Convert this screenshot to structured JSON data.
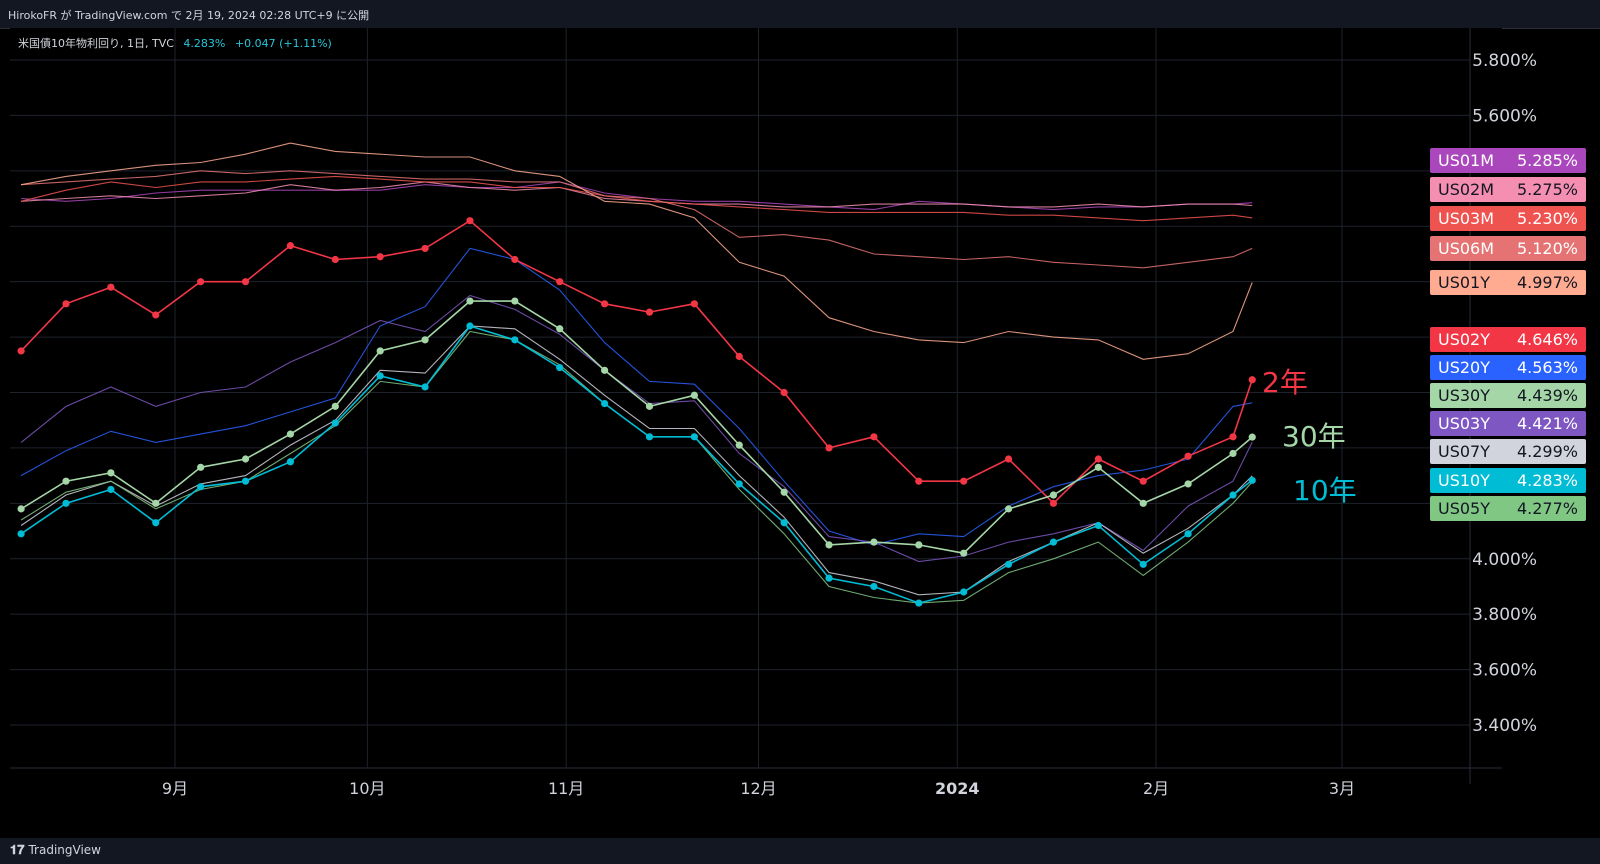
{
  "header": {
    "publish_text": "HirokoFR が TradingView.com で 2月 19, 2024 02:28 UTC+9 に公開"
  },
  "legend": {
    "title": "米国債10年物利回り, 1日, TVC",
    "value": "4.283%",
    "change": "+0.047 (+1.11%)"
  },
  "footer": {
    "brand": "TradingView",
    "logo_icon": "tradingview-logo-icon"
  },
  "colors": {
    "US02Y": "#f23645",
    "US30Y": "#a5d6a7",
    "US10Y": "#00bcd4",
    "US20Y": "#2962ff",
    "US03Y": "#7e57c2",
    "US01M": "#ab47bc",
    "US02M": "#f48fb1",
    "US03M": "#ef5350",
    "US06M": "#e57373",
    "US01Y": "#ffab91",
    "US07Y": "#d1d4dc",
    "US05Y": "#81c784"
  },
  "chart_data": {
    "type": "line",
    "title": "米国債10年物利回り, 1日, TVC",
    "x": [
      "2023-08-08",
      "2023-08-15",
      "2023-08-22",
      "2023-08-29",
      "2023-09-05",
      "2023-09-12",
      "2023-09-19",
      "2023-09-26",
      "2023-10-03",
      "2023-10-10",
      "2023-10-17",
      "2023-10-24",
      "2023-10-31",
      "2023-11-07",
      "2023-11-14",
      "2023-11-21",
      "2023-11-28",
      "2023-12-05",
      "2023-12-12",
      "2023-12-19",
      "2023-12-26",
      "2024-01-02",
      "2024-01-09",
      "2024-01-16",
      "2024-01-23",
      "2024-01-30",
      "2024-02-06",
      "2024-02-13",
      "2024-02-16"
    ],
    "xaxis_ticks": [
      "9月",
      "10月",
      "11月",
      "12月",
      "2024",
      "2月",
      "3月"
    ],
    "yaxis_ticks": [
      "5.800%",
      "5.600%",
      "4.000%",
      "3.800%",
      "3.600%",
      "3.400%"
    ],
    "ylim": [
      3.25,
      5.99
    ],
    "series": [
      {
        "name": "US01M",
        "values": [
          5.3,
          5.29,
          5.3,
          5.32,
          5.33,
          5.33,
          5.33,
          5.33,
          5.33,
          5.35,
          5.34,
          5.34,
          5.36,
          5.32,
          5.3,
          5.29,
          5.29,
          5.28,
          5.27,
          5.26,
          5.29,
          5.28,
          5.27,
          5.26,
          5.27,
          5.27,
          5.28,
          5.28,
          5.285
        ]
      },
      {
        "name": "US02M",
        "values": [
          5.29,
          5.3,
          5.31,
          5.3,
          5.31,
          5.32,
          5.35,
          5.33,
          5.34,
          5.36,
          5.34,
          5.33,
          5.34,
          5.3,
          5.29,
          5.28,
          5.28,
          5.27,
          5.27,
          5.28,
          5.28,
          5.28,
          5.27,
          5.27,
          5.28,
          5.27,
          5.28,
          5.28,
          5.275
        ]
      },
      {
        "name": "US03M",
        "values": [
          5.29,
          5.33,
          5.36,
          5.34,
          5.36,
          5.36,
          5.37,
          5.38,
          5.37,
          5.36,
          5.36,
          5.34,
          5.34,
          5.31,
          5.29,
          5.28,
          5.27,
          5.26,
          5.25,
          5.25,
          5.25,
          5.25,
          5.24,
          5.24,
          5.23,
          5.22,
          5.23,
          5.24,
          5.23
        ]
      },
      {
        "name": "US06M",
        "values": [
          5.35,
          5.36,
          5.37,
          5.38,
          5.4,
          5.39,
          5.4,
          5.39,
          5.38,
          5.37,
          5.37,
          5.36,
          5.36,
          5.31,
          5.3,
          5.26,
          5.16,
          5.17,
          5.15,
          5.1,
          5.09,
          5.08,
          5.09,
          5.07,
          5.06,
          5.05,
          5.07,
          5.09,
          5.12
        ]
      },
      {
        "name": "US01Y",
        "values": [
          5.35,
          5.38,
          5.4,
          5.42,
          5.43,
          5.46,
          5.5,
          5.47,
          5.46,
          5.45,
          5.45,
          5.4,
          5.38,
          5.29,
          5.28,
          5.23,
          5.07,
          5.02,
          4.87,
          4.82,
          4.79,
          4.78,
          4.82,
          4.8,
          4.79,
          4.72,
          4.74,
          4.82,
          4.997
        ]
      },
      {
        "name": "US02Y",
        "values": [
          4.75,
          4.92,
          4.98,
          4.88,
          5.0,
          5.0,
          5.13,
          5.08,
          5.09,
          5.12,
          5.22,
          5.08,
          5.0,
          4.92,
          4.89,
          4.92,
          4.73,
          4.6,
          4.4,
          4.44,
          4.28,
          4.28,
          4.36,
          4.2,
          4.36,
          4.28,
          4.37,
          4.44,
          4.646
        ]
      },
      {
        "name": "US20Y",
        "values": [
          4.3,
          4.39,
          4.46,
          4.42,
          4.45,
          4.48,
          4.53,
          4.58,
          4.84,
          4.91,
          5.12,
          5.08,
          4.97,
          4.78,
          4.64,
          4.63,
          4.47,
          4.28,
          4.1,
          4.05,
          4.09,
          4.08,
          4.19,
          4.26,
          4.3,
          4.32,
          4.36,
          4.55,
          4.563
        ]
      },
      {
        "name": "US30Y",
        "values": [
          4.18,
          4.28,
          4.31,
          4.2,
          4.33,
          4.36,
          4.45,
          4.55,
          4.75,
          4.79,
          4.93,
          4.93,
          4.83,
          4.68,
          4.55,
          4.59,
          4.41,
          4.24,
          4.05,
          4.06,
          4.05,
          4.02,
          4.18,
          4.23,
          4.33,
          4.2,
          4.27,
          4.38,
          4.439
        ]
      },
      {
        "name": "US03Y",
        "values": [
          4.42,
          4.55,
          4.62,
          4.55,
          4.6,
          4.62,
          4.71,
          4.78,
          4.86,
          4.82,
          4.95,
          4.9,
          4.81,
          4.68,
          4.56,
          4.57,
          4.38,
          4.26,
          4.08,
          4.06,
          3.99,
          4.01,
          4.06,
          4.09,
          4.13,
          4.03,
          4.19,
          4.28,
          4.421
        ]
      },
      {
        "name": "US07Y",
        "values": [
          4.12,
          4.23,
          4.28,
          4.19,
          4.27,
          4.3,
          4.41,
          4.5,
          4.68,
          4.67,
          4.84,
          4.83,
          4.72,
          4.59,
          4.47,
          4.47,
          4.3,
          4.15,
          3.95,
          3.92,
          3.87,
          3.88,
          3.99,
          4.06,
          4.13,
          4.02,
          4.11,
          4.23,
          4.299
        ]
      },
      {
        "name": "US10Y",
        "values": [
          4.09,
          4.2,
          4.25,
          4.13,
          4.26,
          4.28,
          4.35,
          4.49,
          4.66,
          4.62,
          4.84,
          4.79,
          4.69,
          4.56,
          4.44,
          4.44,
          4.27,
          4.13,
          3.93,
          3.9,
          3.84,
          3.88,
          3.98,
          4.06,
          4.12,
          3.98,
          4.09,
          4.23,
          4.283
        ]
      },
      {
        "name": "US05Y",
        "values": [
          4.14,
          4.24,
          4.28,
          4.18,
          4.25,
          4.28,
          4.38,
          4.48,
          4.64,
          4.62,
          4.82,
          4.79,
          4.7,
          4.56,
          4.44,
          4.44,
          4.25,
          4.09,
          3.9,
          3.86,
          3.84,
          3.85,
          3.95,
          4.0,
          4.06,
          3.94,
          4.06,
          4.2,
          4.277
        ]
      }
    ],
    "price_tags": [
      {
        "symbol": "US01M",
        "value": "5.285%"
      },
      {
        "symbol": "US02M",
        "value": "5.275%"
      },
      {
        "symbol": "US03M",
        "value": "5.230%"
      },
      {
        "symbol": "US06M",
        "value": "5.120%"
      },
      {
        "symbol": "US01Y",
        "value": "4.997%"
      },
      {
        "symbol": "US02Y",
        "value": "4.646%"
      },
      {
        "symbol": "US20Y",
        "value": "4.563%"
      },
      {
        "symbol": "US30Y",
        "value": "4.439%"
      },
      {
        "symbol": "US03Y",
        "value": "4.421%"
      },
      {
        "symbol": "US07Y",
        "value": "4.299%"
      },
      {
        "symbol": "US10Y",
        "value": "4.283%"
      },
      {
        "symbol": "US05Y",
        "value": "4.277%"
      }
    ],
    "annotations": [
      {
        "text": "2年",
        "series": "US02Y"
      },
      {
        "text": "30年",
        "series": "US30Y"
      },
      {
        "text": "10年",
        "series": "US10Y"
      }
    ]
  }
}
